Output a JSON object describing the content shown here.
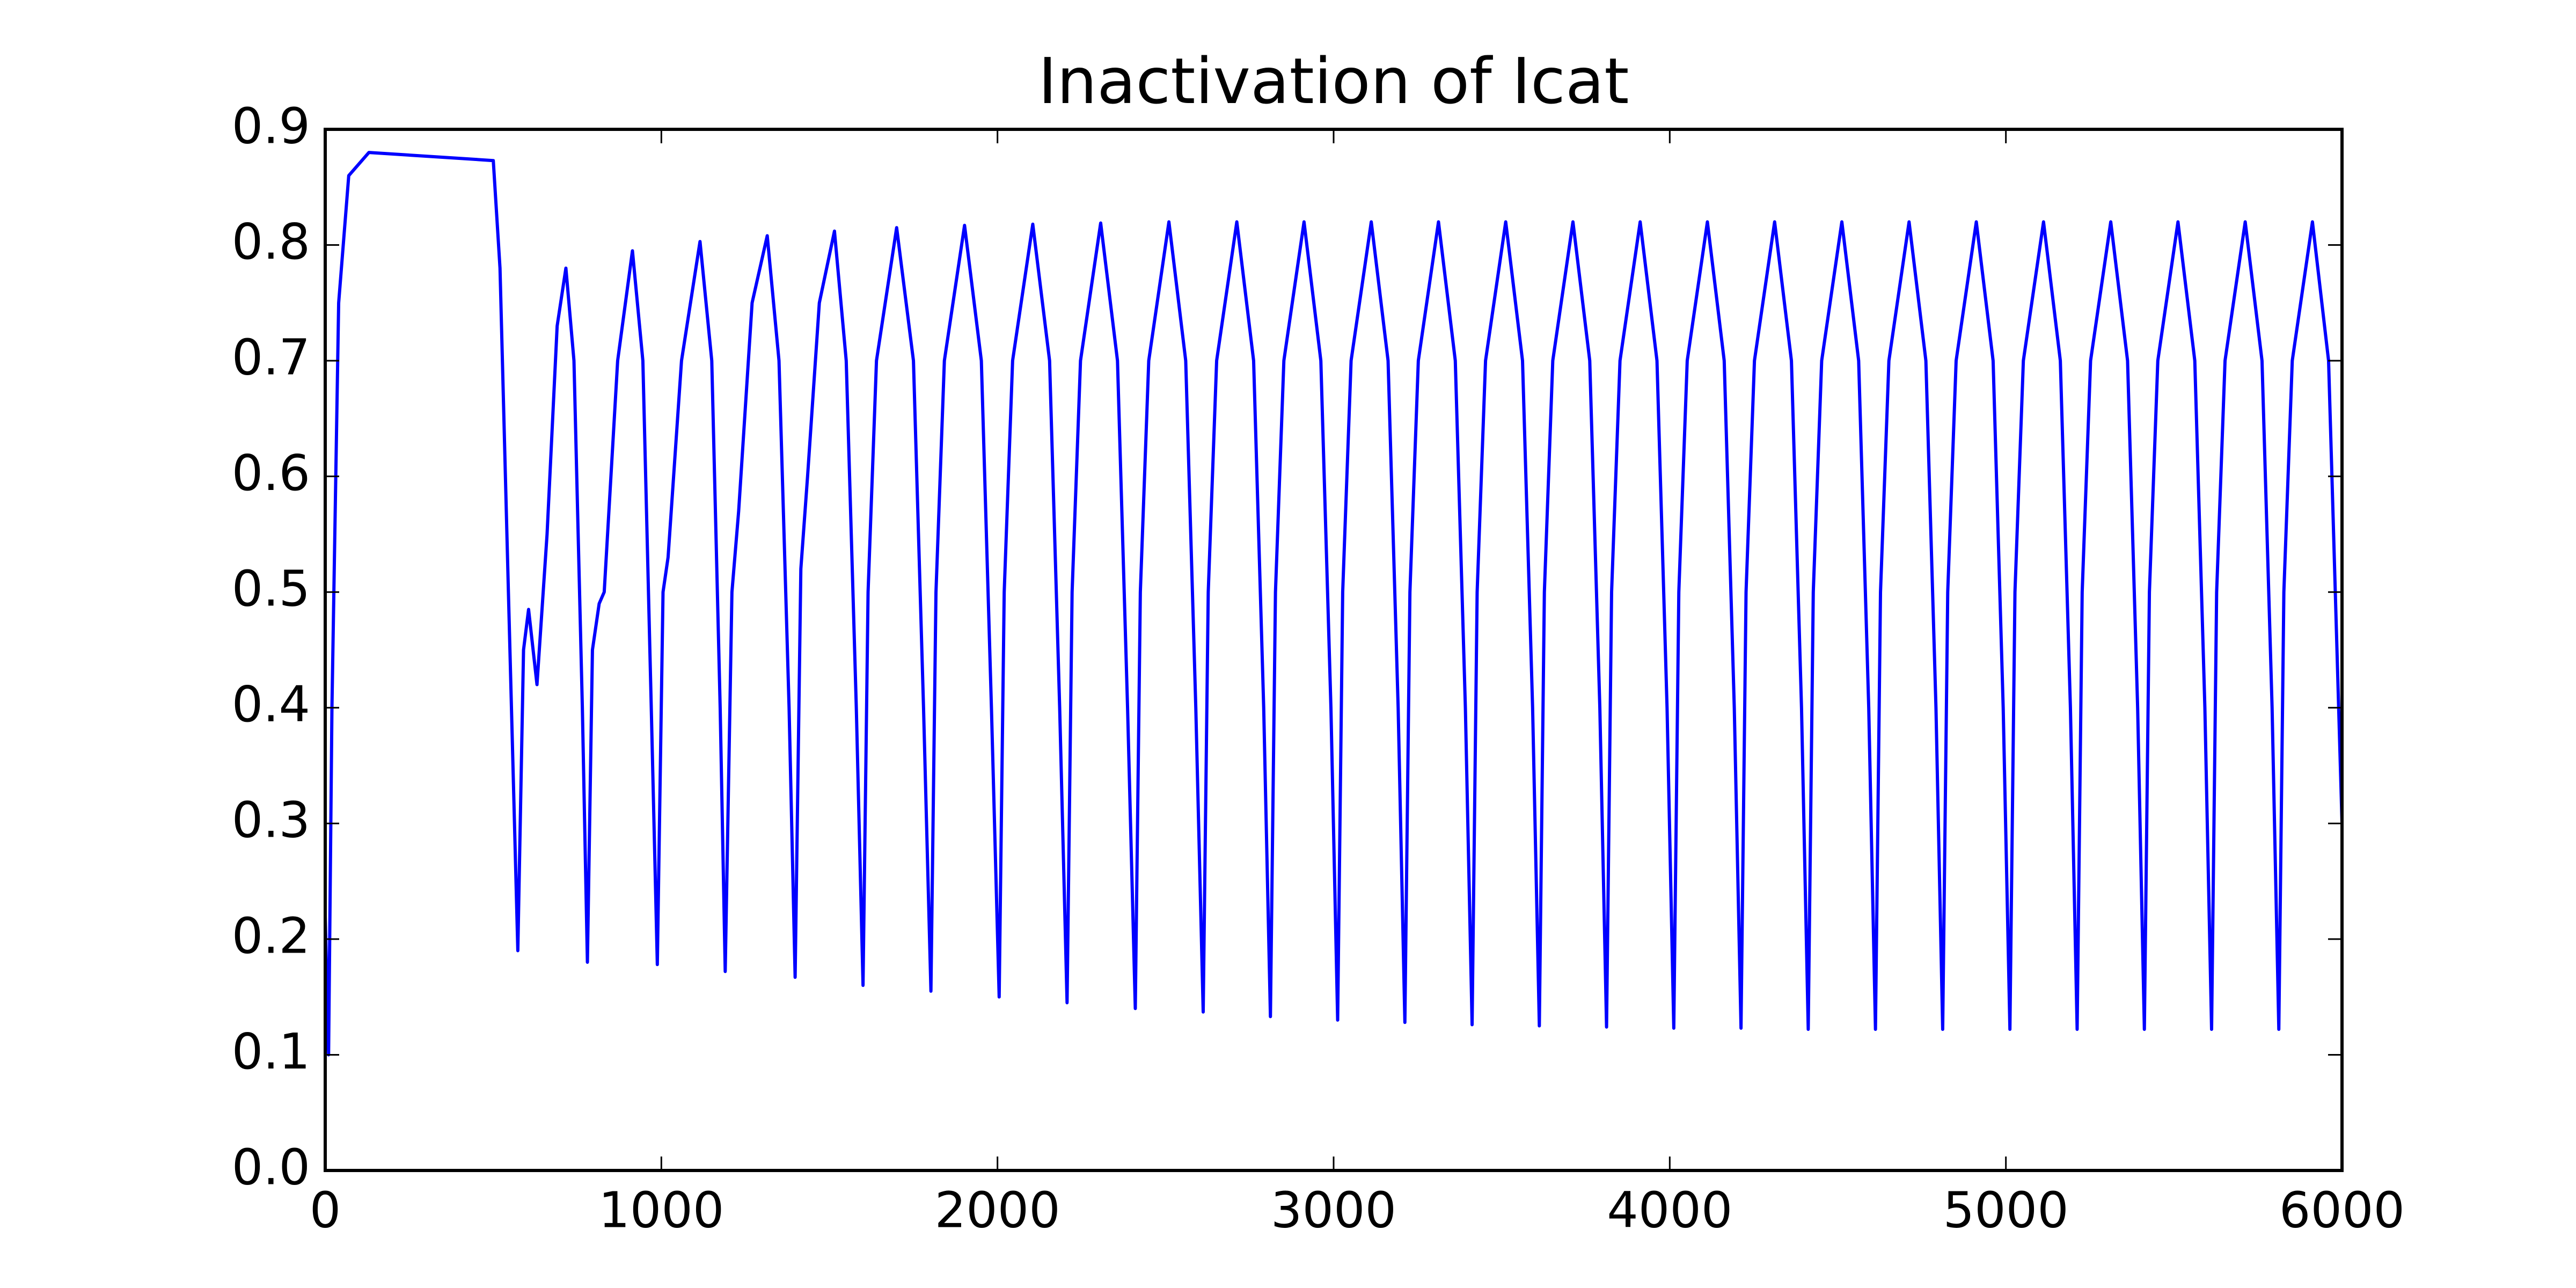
{
  "chart_data": {
    "type": "line",
    "title": "Inactivation of Icat",
    "x": [
      0,
      10,
      20,
      40,
      70,
      130,
      500,
      520,
      545,
      573,
      590,
      605,
      630,
      660,
      690,
      716,
      740,
      765,
      780,
      795,
      815,
      830,
      870,
      914,
      945,
      970,
      988,
      1005,
      1020,
      1060,
      1115,
      1150,
      1175,
      1190,
      1210,
      1230,
      1270,
      1315,
      1350,
      1380,
      1398,
      1415,
      1435,
      1470,
      1515,
      1550,
      1580,
      1600,
      1615,
      1640,
      1700,
      1750,
      1780,
      1802,
      1817,
      1842,
      1902,
      1952,
      1982,
      2005,
      2020,
      2045,
      2105,
      2155,
      2185,
      2207,
      2222,
      2247,
      2307,
      2357,
      2387,
      2410,
      2425,
      2450,
      2510,
      2560,
      2590,
      2612,
      2627,
      2652,
      2712,
      2762,
      2792,
      2812,
      2827,
      2852,
      2912,
      2962,
      2992,
      3012,
      3027,
      3052,
      3112,
      3162,
      3192,
      3212,
      3227,
      3252,
      3312,
      3362,
      3392,
      3412,
      3427,
      3452,
      3512,
      3562,
      3592,
      3612,
      3627,
      3652,
      3712,
      3762,
      3792,
      3812,
      3827,
      3852,
      3912,
      3962,
      3992,
      4012,
      4027,
      4052,
      4112,
      4162,
      4192,
      4212,
      4227,
      4252,
      4312,
      4362,
      4392,
      4412,
      4427,
      4452,
      4512,
      4562,
      4592,
      4612,
      4627,
      4652,
      4712,
      4762,
      4792,
      4812,
      4827,
      4852,
      4912,
      4962,
      4992,
      5012,
      5027,
      5052,
      5112,
      5162,
      5192,
      5212,
      5227,
      5252,
      5312,
      5362,
      5392,
      5412,
      5427,
      5452,
      5512,
      5562,
      5592,
      5612,
      5627,
      5652,
      5712,
      5762,
      5792,
      5812,
      5827,
      5852,
      5912,
      5960,
      6000
    ],
    "series": [
      {
        "color": "#0000ff",
        "values": [
          0.22,
          0.1,
          0.4,
          0.75,
          0.86,
          0.88,
          0.873,
          0.78,
          0.5,
          0.19,
          0.45,
          0.485,
          0.42,
          0.55,
          0.73,
          0.78,
          0.7,
          0.4,
          0.18,
          0.45,
          0.49,
          0.5,
          0.7,
          0.795,
          0.7,
          0.4,
          0.178,
          0.5,
          0.53,
          0.7,
          0.803,
          0.7,
          0.4,
          0.172,
          0.5,
          0.57,
          0.75,
          0.808,
          0.7,
          0.4,
          0.167,
          0.52,
          0.6,
          0.75,
          0.812,
          0.7,
          0.4,
          0.16,
          0.5,
          0.7,
          0.815,
          0.7,
          0.4,
          0.155,
          0.5,
          0.7,
          0.817,
          0.7,
          0.4,
          0.15,
          0.5,
          0.7,
          0.818,
          0.7,
          0.4,
          0.145,
          0.5,
          0.7,
          0.819,
          0.7,
          0.4,
          0.14,
          0.5,
          0.7,
          0.82,
          0.7,
          0.4,
          0.137,
          0.5,
          0.7,
          0.82,
          0.7,
          0.4,
          0.133,
          0.5,
          0.7,
          0.82,
          0.7,
          0.4,
          0.13,
          0.5,
          0.7,
          0.82,
          0.7,
          0.4,
          0.128,
          0.5,
          0.7,
          0.82,
          0.7,
          0.4,
          0.126,
          0.5,
          0.7,
          0.82,
          0.7,
          0.4,
          0.125,
          0.5,
          0.7,
          0.82,
          0.7,
          0.4,
          0.124,
          0.5,
          0.7,
          0.82,
          0.7,
          0.4,
          0.123,
          0.5,
          0.7,
          0.82,
          0.7,
          0.4,
          0.123,
          0.5,
          0.7,
          0.82,
          0.7,
          0.4,
          0.122,
          0.5,
          0.7,
          0.82,
          0.7,
          0.4,
          0.122,
          0.5,
          0.7,
          0.82,
          0.7,
          0.4,
          0.122,
          0.5,
          0.7,
          0.82,
          0.7,
          0.4,
          0.122,
          0.5,
          0.7,
          0.82,
          0.7,
          0.4,
          0.122,
          0.5,
          0.7,
          0.82,
          0.7,
          0.4,
          0.122,
          0.5,
          0.7,
          0.82,
          0.7,
          0.4,
          0.122,
          0.5,
          0.7,
          0.82,
          0.7,
          0.4,
          0.122,
          0.5,
          0.7,
          0.82,
          0.7,
          0.3
        ]
      }
    ],
    "xlim": [
      0,
      6000
    ],
    "xticks": [
      0,
      1000,
      2000,
      3000,
      4000,
      5000,
      6000
    ],
    "ylim": [
      0,
      0.9
    ],
    "yticks": [
      {
        "value": 0,
        "label": "0.0"
      },
      0.1,
      0.2,
      0.3,
      0.4,
      0.5,
      0.6,
      0.7,
      0.8,
      0.9
    ],
    "grid": false
  }
}
